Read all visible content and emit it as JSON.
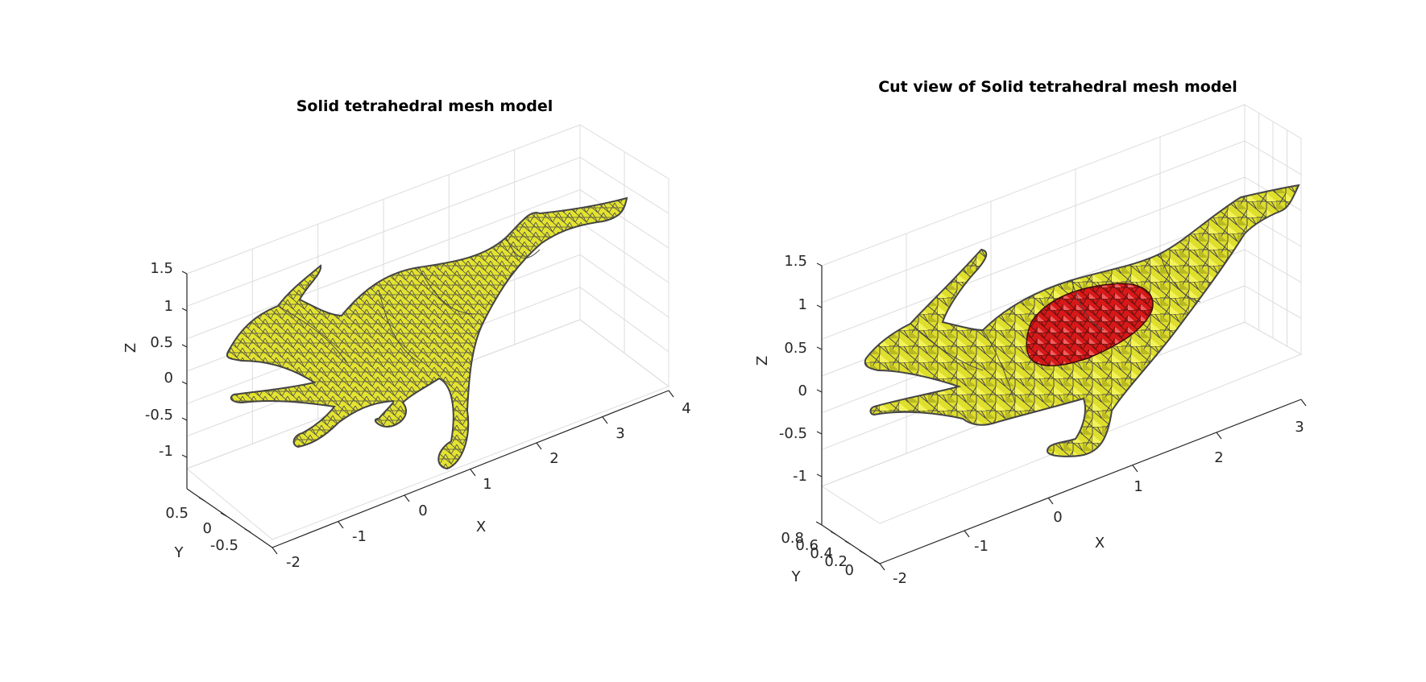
{
  "chart_data": [
    {
      "type": "3d-surface",
      "title": "Solid tetrahedral mesh model",
      "xlabel": "X",
      "ylabel": "Y",
      "zlabel": "Z",
      "xticks": [
        "-2",
        "-1",
        "0",
        "1",
        "2",
        "3",
        "4"
      ],
      "yticks": [
        "0.5",
        "0",
        "-0.5"
      ],
      "zticks": [
        "1.5",
        "1",
        "0.5",
        "0",
        "-0.5",
        "-1"
      ],
      "xlim": [
        -2,
        4
      ],
      "ylim": [
        -0.5,
        0.5
      ],
      "zlim": [
        -1,
        1.5
      ],
      "grid": true,
      "face_color": "#e8e832",
      "edge_color": "#444444"
    },
    {
      "type": "3d-surface",
      "title": "Cut view of Solid tetrahedral mesh model",
      "xlabel": "X",
      "ylabel": "Y",
      "zlabel": "Z",
      "xticks": [
        "-2",
        "-1",
        "0",
        "1",
        "2",
        "3"
      ],
      "yticks": [
        "0.8",
        "0.6",
        "0.4",
        "0.2",
        "0"
      ],
      "zticks": [
        "1.5",
        "1",
        "0.5",
        "0",
        "-0.5",
        "-1"
      ],
      "xlim": [
        -2,
        3
      ],
      "ylim": [
        0,
        0.8
      ],
      "zlim": [
        -1,
        1.5
      ],
      "grid": true,
      "face_color": "#e8e832",
      "cut_color": "#e01818",
      "edge_color": "#444444"
    }
  ]
}
